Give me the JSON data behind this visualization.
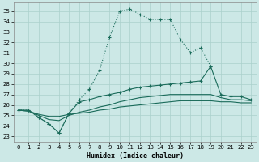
{
  "xlabel": "Humidex (Indice chaleur)",
  "xlim": [
    -0.5,
    23.5
  ],
  "ylim": [
    22.5,
    35.8
  ],
  "yticks": [
    23,
    24,
    25,
    26,
    27,
    28,
    29,
    30,
    31,
    32,
    33,
    34,
    35
  ],
  "xticks": [
    0,
    1,
    2,
    3,
    4,
    5,
    6,
    7,
    8,
    9,
    10,
    11,
    12,
    13,
    14,
    15,
    16,
    17,
    18,
    19,
    20,
    21,
    22,
    23
  ],
  "bg_color": "#cce8e6",
  "grid_color": "#aad0cc",
  "line_color": "#1a6b5a",
  "line1_x": [
    0,
    1,
    2,
    3,
    4,
    5,
    6,
    7,
    8,
    9,
    10,
    11,
    12,
    13,
    14,
    15,
    16,
    17,
    18,
    19
  ],
  "line1_y": [
    25.5,
    25.5,
    24.8,
    24.2,
    23.3,
    25.2,
    26.5,
    27.5,
    29.3,
    32.5,
    35.0,
    35.2,
    34.7,
    34.2,
    34.2,
    34.2,
    32.3,
    31.0,
    31.5,
    29.7
  ],
  "line2_x": [
    0,
    1,
    2,
    3,
    4,
    5,
    6,
    7,
    8,
    9,
    10,
    11,
    12,
    13,
    14,
    15,
    16,
    17,
    18,
    19,
    20,
    21,
    22,
    23
  ],
  "line2_y": [
    25.5,
    25.5,
    24.8,
    24.2,
    23.3,
    25.2,
    26.3,
    26.5,
    26.8,
    27.0,
    27.2,
    27.5,
    27.7,
    27.8,
    27.9,
    28.0,
    28.1,
    28.2,
    28.3,
    29.7,
    27.0,
    26.8,
    26.8,
    26.5
  ],
  "line3_x": [
    0,
    1,
    2,
    3,
    4,
    5,
    6,
    7,
    8,
    9,
    10,
    11,
    12,
    13,
    14,
    15,
    16,
    17,
    18,
    19,
    20,
    21,
    22,
    23
  ],
  "line3_y": [
    25.5,
    25.4,
    25.0,
    24.6,
    24.5,
    25.0,
    25.3,
    25.5,
    25.8,
    26.0,
    26.3,
    26.5,
    26.7,
    26.8,
    26.9,
    27.0,
    27.0,
    27.0,
    27.0,
    27.0,
    26.7,
    26.5,
    26.5,
    26.4
  ],
  "line4_x": [
    0,
    1,
    2,
    3,
    4,
    5,
    6,
    7,
    8,
    9,
    10,
    11,
    12,
    13,
    14,
    15,
    16,
    17,
    18,
    19,
    20,
    21,
    22,
    23
  ],
  "line4_y": [
    25.5,
    25.4,
    25.1,
    24.9,
    24.9,
    25.1,
    25.2,
    25.3,
    25.5,
    25.6,
    25.8,
    25.9,
    26.0,
    26.1,
    26.2,
    26.3,
    26.4,
    26.4,
    26.4,
    26.4,
    26.3,
    26.3,
    26.2,
    26.2
  ]
}
